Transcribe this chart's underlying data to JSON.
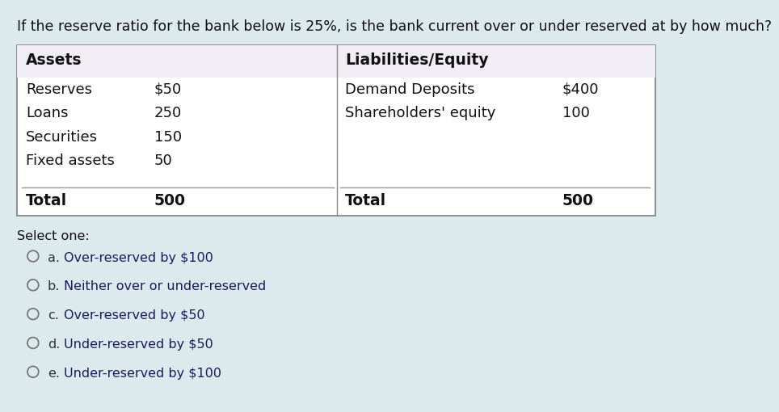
{
  "question": "If the reserve ratio for the bank below is 25%, is the bank current over or under reserved at by how much?",
  "bg_color": "#dce9ed",
  "table_bg": "#ffffff",
  "header_bg": "#f0edf4",
  "table_border_color": "#888888",
  "assets_header": "Assets",
  "liabilities_header": "Liabilities/Equity",
  "assets_items": [
    [
      "Reserves",
      "$50"
    ],
    [
      "Loans",
      "250"
    ],
    [
      "Securities",
      "150"
    ],
    [
      "Fixed assets",
      "50"
    ]
  ],
  "assets_total_label": "Total",
  "assets_total_value": "500",
  "liabilities_items": [
    [
      "Demand Deposits",
      "$400"
    ],
    [
      "Shareholders' equity",
      "100"
    ]
  ],
  "liabilities_total_label": "Total",
  "liabilities_total_value": "500",
  "select_one_label": "Select one:",
  "options": [
    [
      "a.",
      "Over-reserved by $100"
    ],
    [
      "b.",
      "Neither over or under-reserved"
    ],
    [
      "c.",
      "Over-reserved by $50"
    ],
    [
      "d.",
      "Under-reserved by $50"
    ],
    [
      "e.",
      "Under-reserved by $100"
    ]
  ],
  "question_fontsize": 12.5,
  "table_header_fontsize": 13.5,
  "table_body_fontsize": 13,
  "total_fontsize": 13.5,
  "select_fontsize": 11.5,
  "option_fontsize": 11.5
}
